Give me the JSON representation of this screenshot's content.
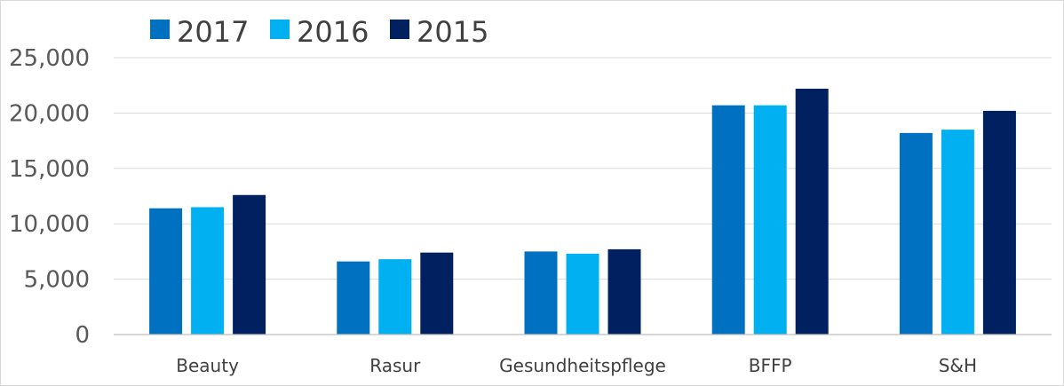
{
  "chart_data": {
    "type": "bar",
    "title": "",
    "xlabel": "",
    "ylabel": "",
    "categories": [
      "Beauty",
      "Rasur",
      "Gesundheitspflege",
      "BFFP",
      "S&H"
    ],
    "series": [
      {
        "name": "2017",
        "color": "#0070C0",
        "values": [
          11400,
          6600,
          7500,
          20700,
          18200
        ]
      },
      {
        "name": "2016",
        "color": "#00B0F0",
        "values": [
          11500,
          6800,
          7300,
          20700,
          18500
        ]
      },
      {
        "name": "2015",
        "color": "#002060",
        "values": [
          12600,
          7400,
          7700,
          22200,
          20200
        ]
      }
    ],
    "ylim": [
      0,
      25000
    ],
    "yticks": [
      0,
      5000,
      10000,
      15000,
      20000,
      25000
    ],
    "ytick_labels": [
      "0",
      "5,000",
      "10,000",
      "15,000",
      "20,000",
      "25,000"
    ],
    "grid": true,
    "legend_position": "top-left"
  }
}
